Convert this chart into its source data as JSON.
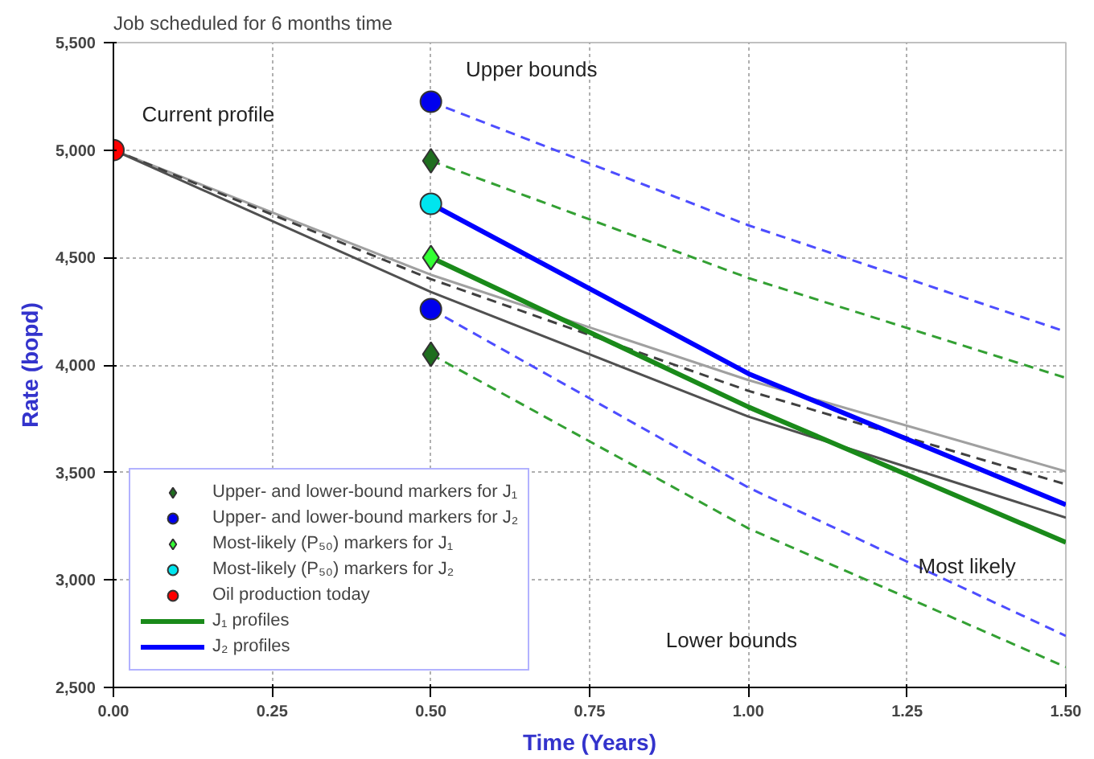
{
  "chart_data": {
    "type": "line",
    "title": "Job scheduled for 6 months time",
    "xlabel": "Time (Years)",
    "ylabel": "Rate (bopd)",
    "xlim": [
      0,
      1.5
    ],
    "ylim": [
      2500,
      5500
    ],
    "xticks": [
      {
        "value": 0,
        "label": "0.00"
      },
      {
        "value": 0.25,
        "label": "0.25"
      },
      {
        "value": 0.5,
        "label": "0.50"
      },
      {
        "value": 0.75,
        "label": "0.75"
      },
      {
        "value": 1.0,
        "label": "1.00"
      },
      {
        "value": 1.25,
        "label": "1.25"
      },
      {
        "value": 1.5,
        "label": "1.50"
      }
    ],
    "yticks": [
      {
        "value": 2500,
        "label": "2,500"
      },
      {
        "value": 3000,
        "label": "3,000"
      },
      {
        "value": 3500,
        "label": "3,500"
      },
      {
        "value": 4000,
        "label": "4,000"
      },
      {
        "value": 4500,
        "label": "4,500"
      },
      {
        "value": 5000,
        "label": "5,000"
      },
      {
        "value": 5500,
        "label": "5,500"
      }
    ],
    "grid": true,
    "legend": "bottom left",
    "annotations": [
      "Current profile",
      "Upper bounds",
      "Lower bounds",
      "Most likely"
    ],
    "series": [
      {
        "color": "#a0a0a0",
        "line_style": "solid",
        "x": [
          0,
          0.5,
          1.0,
          1.5
        ],
        "values": [
          5000,
          4420,
          3930,
          3505
        ]
      },
      {
        "color": "#404040",
        "line_style": "dashed",
        "x": [
          0,
          0.5,
          1.0,
          1.5
        ],
        "values": [
          5000,
          4400,
          3880,
          3445
        ]
      },
      {
        "color": "#505050",
        "line_style": "solid",
        "x": [
          0,
          0.5,
          1.0,
          1.5
        ],
        "values": [
          5000,
          4340,
          3760,
          3290
        ]
      },
      {
        "name": "J₁ profiles",
        "color": "#1a8a1a",
        "line_style": "solid",
        "x": [
          0.5,
          1.0,
          1.5
        ],
        "values": [
          4500,
          3805,
          3175
        ]
      },
      {
        "color": "#33a033",
        "line_style": "dashed",
        "x": [
          0.5,
          1.0,
          1.5
        ],
        "values": [
          4950,
          4405,
          3940
        ]
      },
      {
        "color": "#33a033",
        "line_style": "dashed",
        "x": [
          0.5,
          1.0,
          1.5
        ],
        "values": [
          4050,
          3240,
          2595
        ]
      },
      {
        "name": "J₂ profiles",
        "color": "#0000ff",
        "line_style": "solid",
        "x": [
          0.5,
          1.0,
          1.5
        ],
        "values": [
          4750,
          3960,
          3350
        ]
      },
      {
        "color": "#4d4dff",
        "line_style": "dashed",
        "x": [
          0.5,
          1.0,
          1.5
        ],
        "values": [
          5225,
          4650,
          4155
        ]
      },
      {
        "color": "#4d4dff",
        "line_style": "dashed",
        "x": [
          0.5,
          1.0,
          1.5
        ],
        "values": [
          4260,
          3430,
          2740
        ]
      },
      {
        "type": "scatter",
        "name": "Upper- and lower-bound markers for J₁",
        "color": "#1e6e1e",
        "marker": "diamond",
        "x": [
          0.5,
          0.5
        ],
        "values": [
          4950,
          4050
        ]
      },
      {
        "type": "scatter",
        "name": "Upper- and lower-bound markers for J₂",
        "color": "#0000ee",
        "marker": "circle",
        "x": [
          0.5,
          0.5
        ],
        "values": [
          5225,
          4260
        ]
      },
      {
        "type": "scatter",
        "name": "Most-likely (P₅₀) markers for J₁",
        "color": "#33ff33",
        "marker": "diamond",
        "x": [
          0.5
        ],
        "values": [
          4500
        ]
      },
      {
        "type": "scatter",
        "name": "Most-likely (P₅₀) markers for J₂",
        "color": "#00e5ee",
        "marker": "circle",
        "x": [
          0.5
        ],
        "values": [
          4750
        ]
      },
      {
        "type": "scatter",
        "name": "Oil production today",
        "color": "#ff0000",
        "marker": "circle",
        "x": [
          0
        ],
        "values": [
          5000
        ]
      }
    ]
  }
}
